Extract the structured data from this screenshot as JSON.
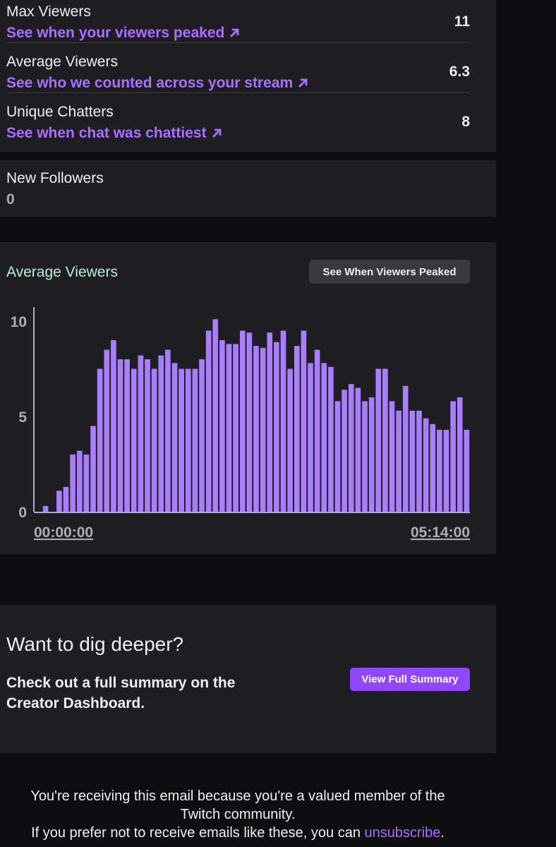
{
  "stats": {
    "max_viewers": {
      "label": "Max Viewers",
      "link": "See when your viewers peaked",
      "value": "11"
    },
    "average_viewers": {
      "label": "Average Viewers",
      "link": "See who we counted across your stream",
      "value": "6.3"
    },
    "unique_chatters": {
      "label": "Unique Chatters",
      "link": "See when chat was chattiest",
      "value": "8"
    }
  },
  "followers": {
    "label": "New Followers",
    "value": "0"
  },
  "chart_panel": {
    "title": "Average Viewers",
    "button_label": "See When Viewers Peaked"
  },
  "cta": {
    "title": "Want to dig deeper?",
    "text": "Check out a full summary on the Creator Dashboard.",
    "button_label": "View Full Summary"
  },
  "footer": {
    "line1": "You're receiving this email because you're a valued member of the",
    "line2": "Twitch community.",
    "line3_prefix": "If you prefer not to receive emails like these, you can ",
    "unsubscribe": "unsubscribe",
    "line3_suffix": "."
  },
  "colors": {
    "accent": "#a970ff",
    "bar": "#a97eff",
    "chart_title": "#b3f2d4",
    "button": "#9147ff",
    "panel": "#1f1f23"
  },
  "chart_data": {
    "type": "bar",
    "title": "Average Viewers",
    "xlabel": "",
    "ylabel": "",
    "ylim": [
      0,
      10
    ],
    "yticks": [
      0,
      5,
      10
    ],
    "x_start_label": "00:00:00",
    "x_end_label": "05:14:00",
    "values": [
      0,
      0.3,
      0,
      1.1,
      1.3,
      3,
      3.2,
      3,
      4.5,
      7.5,
      8.5,
      9,
      8,
      8,
      7.5,
      8.2,
      8,
      7.5,
      8.2,
      8.5,
      7.8,
      7.5,
      7.5,
      7.5,
      8,
      9.5,
      10.1,
      9,
      8.8,
      8.8,
      9.5,
      9.4,
      8.7,
      8.6,
      9.4,
      8.9,
      9.5,
      7.5,
      8.7,
      9.5,
      7.8,
      8.5,
      7.8,
      7.6,
      5.8,
      6.4,
      6.7,
      6.5,
      5.8,
      6,
      7.5,
      7.5,
      5.8,
      5.3,
      6.6,
      5.3,
      5.3,
      4.9,
      4.6,
      4.3,
      4.3,
      5.8,
      6,
      4.3
    ]
  }
}
